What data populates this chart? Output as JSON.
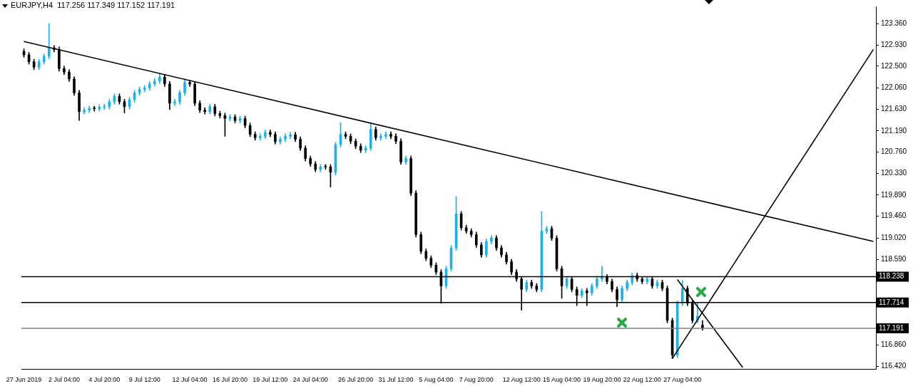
{
  "chart_data": {
    "type": "candlestick",
    "title": "EURJPY,H4  117.256 117.349 117.152 117.191",
    "categories": [
      "27 Jun 2019",
      null,
      null,
      null,
      null,
      null,
      null,
      null,
      "2 Jul 04:00",
      null,
      null,
      null,
      null,
      null,
      null,
      null,
      "4 Jul 20:00",
      null,
      null,
      null,
      null,
      null,
      null,
      null,
      "9 Jul 12:00",
      null,
      null,
      null,
      null,
      null,
      null,
      null,
      null,
      "12 Jul 04:00",
      null,
      null,
      null,
      null,
      null,
      null,
      null,
      "16 Jul 20:00",
      null,
      null,
      null,
      null,
      null,
      null,
      null,
      "19 Jul 12:00",
      null,
      null,
      null,
      null,
      null,
      null,
      null,
      "24 Jul 04:00",
      null,
      null,
      null,
      null,
      null,
      null,
      null,
      null,
      "26 Jul 20:00",
      null,
      null,
      null,
      null,
      null,
      null,
      null,
      "31 Jul 12:00",
      null,
      null,
      null,
      null,
      null,
      null,
      null,
      "5 Aug 04:00",
      null,
      null,
      null,
      null,
      null,
      null,
      null,
      "7 Aug 20:00",
      null,
      null,
      null,
      null,
      null,
      null,
      null,
      null,
      "12 Aug 12:00",
      null,
      null,
      null,
      null,
      null,
      null,
      null,
      "15 Aug 04:00",
      null,
      null,
      null,
      null,
      null,
      null,
      null,
      "19 Aug 20:00",
      null,
      null,
      null,
      null,
      null,
      null,
      null,
      "22 Aug 12:00",
      null,
      null,
      null,
      null,
      null,
      null,
      null,
      "27 Aug 04:00",
      null,
      null,
      null,
      null,
      null,
      null,
      null,
      null,
      null,
      null,
      null,
      null,
      null,
      null,
      null,
      null,
      null,
      null,
      null,
      null,
      null,
      null,
      null,
      null,
      null,
      null,
      null,
      null,
      null,
      null,
      null,
      null,
      null,
      null,
      null,
      null,
      null,
      null
    ],
    "ohlc": [
      [
        122.8,
        122.85,
        122.68,
        122.73
      ],
      [
        122.73,
        122.78,
        122.54,
        122.59
      ],
      [
        122.59,
        122.64,
        122.43,
        122.48
      ],
      [
        122.48,
        122.64,
        122.43,
        122.59
      ],
      [
        122.59,
        122.75,
        122.54,
        122.7
      ],
      [
        122.7,
        123.36,
        122.65,
        122.87
      ],
      [
        122.87,
        122.92,
        122.79,
        122.84
      ],
      [
        122.84,
        122.89,
        122.4,
        122.45
      ],
      [
        122.45,
        122.5,
        122.33,
        122.38
      ],
      [
        122.38,
        122.43,
        122.19,
        122.24
      ],
      [
        122.24,
        122.29,
        121.91,
        121.96
      ],
      [
        121.96,
        122.01,
        121.4,
        121.58
      ],
      [
        121.58,
        121.66,
        121.53,
        121.61
      ],
      [
        121.61,
        121.69,
        121.56,
        121.64
      ],
      [
        121.64,
        121.69,
        121.59,
        121.64
      ],
      [
        121.64,
        121.72,
        121.59,
        121.67
      ],
      [
        121.67,
        121.73,
        121.62,
        121.68
      ],
      [
        121.68,
        121.83,
        121.63,
        121.78
      ],
      [
        121.78,
        121.94,
        121.73,
        121.89
      ],
      [
        121.89,
        121.94,
        121.73,
        121.78
      ],
      [
        121.78,
        121.83,
        121.55,
        121.68
      ],
      [
        121.68,
        121.87,
        121.63,
        121.82
      ],
      [
        121.82,
        122.01,
        121.77,
        121.96
      ],
      [
        121.96,
        122.08,
        121.91,
        122.03
      ],
      [
        122.03,
        122.11,
        121.98,
        122.06
      ],
      [
        122.06,
        122.19,
        122.01,
        122.14
      ],
      [
        122.14,
        122.25,
        122.09,
        122.2
      ],
      [
        122.2,
        122.36,
        122.15,
        122.28
      ],
      [
        122.28,
        122.33,
        122.09,
        122.14
      ],
      [
        122.14,
        122.19,
        121.62,
        121.75
      ],
      [
        121.75,
        121.83,
        121.7,
        121.78
      ],
      [
        121.78,
        122.01,
        121.73,
        121.96
      ],
      [
        121.96,
        122.25,
        121.91,
        122.17
      ],
      [
        122.17,
        122.22,
        122.09,
        122.14
      ],
      [
        122.14,
        122.19,
        121.7,
        121.75
      ],
      [
        121.75,
        121.8,
        121.56,
        121.61
      ],
      [
        121.61,
        121.66,
        121.53,
        121.58
      ],
      [
        121.58,
        121.73,
        121.53,
        121.68
      ],
      [
        121.68,
        121.73,
        121.49,
        121.54
      ],
      [
        121.54,
        121.59,
        121.45,
        121.5
      ],
      [
        121.5,
        121.55,
        121.08,
        121.44
      ],
      [
        121.44,
        121.52,
        121.39,
        121.47
      ],
      [
        121.47,
        121.52,
        121.35,
        121.4
      ],
      [
        121.4,
        121.49,
        121.35,
        121.44
      ],
      [
        121.44,
        121.49,
        121.25,
        121.3
      ],
      [
        121.3,
        121.35,
        121.07,
        121.12
      ],
      [
        121.12,
        121.17,
        121.0,
        121.05
      ],
      [
        121.05,
        121.13,
        121.0,
        121.08
      ],
      [
        121.08,
        121.21,
        121.03,
        121.16
      ],
      [
        121.16,
        121.21,
        121.07,
        121.12
      ],
      [
        121.12,
        121.17,
        120.92,
        120.97
      ],
      [
        120.97,
        121.07,
        120.92,
        121.02
      ],
      [
        121.02,
        121.13,
        120.97,
        121.08
      ],
      [
        121.08,
        121.16,
        121.03,
        121.11
      ],
      [
        121.11,
        121.16,
        120.97,
        121.02
      ],
      [
        121.02,
        121.07,
        120.79,
        120.84
      ],
      [
        120.84,
        120.89,
        120.58,
        120.63
      ],
      [
        120.63,
        120.68,
        120.47,
        120.52
      ],
      [
        120.52,
        120.57,
        120.36,
        120.41
      ],
      [
        120.41,
        120.51,
        120.36,
        120.46
      ],
      [
        120.46,
        120.51,
        120.41,
        120.46
      ],
      [
        120.46,
        120.51,
        120.05,
        120.35
      ],
      [
        120.35,
        120.96,
        120.3,
        120.91
      ],
      [
        120.91,
        121.36,
        120.86,
        121.12
      ],
      [
        121.12,
        121.17,
        121.03,
        121.08
      ],
      [
        121.08,
        121.13,
        120.93,
        120.98
      ],
      [
        120.98,
        121.03,
        120.83,
        120.88
      ],
      [
        120.88,
        120.93,
        120.75,
        120.8
      ],
      [
        120.8,
        120.89,
        120.75,
        120.84
      ],
      [
        120.84,
        121.36,
        120.79,
        121.22
      ],
      [
        121.22,
        121.27,
        121.0,
        121.05
      ],
      [
        121.05,
        121.13,
        121.0,
        121.08
      ],
      [
        121.08,
        121.17,
        121.03,
        121.12
      ],
      [
        121.12,
        121.17,
        121.03,
        121.08
      ],
      [
        121.08,
        121.13,
        120.93,
        120.98
      ],
      [
        120.98,
        121.03,
        120.51,
        120.56
      ],
      [
        120.56,
        120.68,
        120.51,
        120.63
      ],
      [
        120.63,
        120.68,
        119.88,
        119.93
      ],
      [
        119.93,
        119.98,
        119.04,
        119.09
      ],
      [
        119.09,
        119.14,
        118.7,
        118.75
      ],
      [
        118.75,
        118.8,
        118.56,
        118.61
      ],
      [
        118.61,
        118.66,
        118.42,
        118.47
      ],
      [
        118.47,
        118.52,
        118.28,
        118.33
      ],
      [
        118.33,
        118.38,
        117.7,
        118.05
      ],
      [
        118.05,
        118.45,
        118.0,
        118.4
      ],
      [
        118.4,
        118.87,
        118.35,
        118.82
      ],
      [
        118.82,
        119.86,
        118.77,
        119.51
      ],
      [
        119.51,
        119.56,
        119.18,
        119.23
      ],
      [
        119.23,
        119.28,
        119.11,
        119.16
      ],
      [
        119.16,
        119.21,
        119.04,
        119.09
      ],
      [
        119.09,
        119.14,
        118.83,
        118.88
      ],
      [
        118.88,
        118.93,
        118.63,
        118.68
      ],
      [
        118.68,
        119.0,
        118.63,
        118.95
      ],
      [
        118.95,
        119.07,
        118.9,
        119.02
      ],
      [
        119.02,
        119.07,
        118.77,
        118.82
      ],
      [
        118.82,
        118.87,
        118.63,
        118.68
      ],
      [
        118.68,
        118.73,
        118.49,
        118.54
      ],
      [
        118.54,
        118.59,
        118.28,
        118.33
      ],
      [
        118.33,
        118.38,
        118.14,
        118.19
      ],
      [
        118.19,
        118.24,
        117.56,
        117.98
      ],
      [
        117.98,
        118.17,
        117.93,
        118.12
      ],
      [
        118.12,
        118.17,
        118.0,
        118.05
      ],
      [
        118.05,
        118.1,
        117.93,
        117.98
      ],
      [
        117.98,
        119.56,
        117.93,
        119.16
      ],
      [
        119.16,
        119.26,
        119.11,
        119.21
      ],
      [
        119.21,
        119.26,
        118.97,
        119.02
      ],
      [
        119.02,
        119.07,
        118.35,
        118.4
      ],
      [
        118.4,
        118.45,
        117.8,
        118.05
      ],
      [
        118.05,
        118.24,
        118.0,
        118.19
      ],
      [
        118.19,
        118.24,
        117.93,
        117.98
      ],
      [
        117.98,
        118.03,
        117.65,
        117.86
      ],
      [
        117.86,
        118.0,
        117.81,
        117.95
      ],
      [
        117.95,
        118.0,
        117.65,
        117.91
      ],
      [
        117.91,
        118.1,
        117.86,
        118.05
      ],
      [
        118.05,
        118.24,
        118.0,
        118.19
      ],
      [
        118.19,
        118.45,
        118.14,
        118.23
      ],
      [
        118.23,
        118.28,
        118.09,
        118.14
      ],
      [
        118.14,
        118.19,
        117.93,
        117.98
      ],
      [
        117.98,
        118.03,
        117.63,
        117.77
      ],
      [
        117.77,
        118.05,
        117.72,
        118.0
      ],
      [
        118.0,
        118.17,
        117.95,
        118.12
      ],
      [
        118.12,
        118.31,
        118.07,
        118.26
      ],
      [
        118.26,
        118.31,
        118.14,
        118.19
      ],
      [
        118.19,
        118.24,
        118.09,
        118.14
      ],
      [
        118.14,
        118.24,
        118.09,
        118.19
      ],
      [
        118.19,
        118.24,
        118.0,
        118.05
      ],
      [
        118.05,
        118.17,
        118.0,
        118.12
      ],
      [
        118.12,
        118.17,
        117.95,
        118.0
      ],
      [
        118.0,
        118.05,
        117.3,
        117.35
      ],
      [
        117.35,
        117.4,
        116.58,
        116.65
      ],
      [
        116.65,
        117.75,
        116.6,
        117.7
      ],
      [
        117.7,
        118.16,
        117.65,
        118.0
      ],
      [
        118.0,
        118.05,
        117.65,
        117.7
      ],
      [
        117.7,
        117.75,
        117.3,
        117.35
      ],
      [
        117.35,
        117.72,
        117.3,
        117.44
      ],
      [
        117.256,
        117.349,
        117.152,
        117.191
      ],
      null,
      null,
      null,
      null,
      null,
      null,
      null,
      null,
      null,
      null,
      null,
      null,
      null,
      null,
      null,
      null,
      null,
      null,
      null,
      null,
      null,
      null,
      null,
      null,
      null,
      null,
      null,
      null,
      null,
      null,
      null,
      null,
      null,
      null
    ],
    "colors": [
      "#000000",
      "#000000",
      "#000000",
      "#1ab2e8",
      "#1ab2e8",
      "#1ab2e8",
      "#000000",
      "#000000",
      "#000000",
      "#000000",
      "#000000",
      "#000000",
      "#1ab2e8",
      "#1ab2e8",
      "#000000",
      "#1ab2e8",
      "#1ab2e8",
      "#1ab2e8",
      "#1ab2e8",
      "#000000",
      "#000000",
      "#1ab2e8",
      "#1ab2e8",
      "#1ab2e8",
      "#1ab2e8",
      "#1ab2e8",
      "#1ab2e8",
      "#1ab2e8",
      "#000000",
      "#000000",
      "#1ab2e8",
      "#1ab2e8",
      "#1ab2e8",
      "#000000",
      "#000000",
      "#000000",
      "#000000",
      "#1ab2e8",
      "#000000",
      "#000000",
      "#000000",
      "#1ab2e8",
      "#000000",
      "#1ab2e8",
      "#000000",
      "#000000",
      "#000000",
      "#1ab2e8",
      "#1ab2e8",
      "#000000",
      "#000000",
      "#1ab2e8",
      "#1ab2e8",
      "#1ab2e8",
      "#000000",
      "#000000",
      "#000000",
      "#000000",
      "#000000",
      "#1ab2e8",
      "#000000",
      "#000000",
      "#1ab2e8",
      "#1ab2e8",
      "#000000",
      "#000000",
      "#000000",
      "#000000",
      "#1ab2e8",
      "#1ab2e8",
      "#000000",
      "#1ab2e8",
      "#1ab2e8",
      "#000000",
      "#000000",
      "#000000",
      "#1ab2e8",
      "#000000",
      "#000000",
      "#000000",
      "#000000",
      "#000000",
      "#000000",
      "#000000",
      "#1ab2e8",
      "#1ab2e8",
      "#1ab2e8",
      "#000000",
      "#000000",
      "#000000",
      "#000000",
      "#000000",
      "#1ab2e8",
      "#1ab2e8",
      "#000000",
      "#000000",
      "#000000",
      "#000000",
      "#000000",
      "#000000",
      "#1ab2e8",
      "#000000",
      "#000000",
      "#1ab2e8",
      "#1ab2e8",
      "#000000",
      "#000000",
      "#000000",
      "#1ab2e8",
      "#000000",
      "#000000",
      "#1ab2e8",
      "#000000",
      "#1ab2e8",
      "#1ab2e8",
      "#1ab2e8",
      "#000000",
      "#000000",
      "#000000",
      "#1ab2e8",
      "#1ab2e8",
      "#1ab2e8",
      "#000000",
      "#000000",
      "#1ab2e8",
      "#000000",
      "#1ab2e8",
      "#000000",
      "#000000",
      "#000000",
      "#1ab2e8",
      "#1ab2e8",
      "#000000",
      "#000000",
      "#1ab2e8",
      "#000000",
      null,
      null,
      null,
      null,
      null,
      null,
      null,
      null,
      null,
      null,
      null,
      null,
      null,
      null,
      null,
      null,
      null,
      null,
      null,
      null,
      null,
      null,
      null,
      null,
      null,
      null,
      null,
      null,
      null,
      null,
      null,
      null,
      null,
      null
    ],
    "series": [
      {
        "type": "line",
        "color": "#000000",
        "values": [
          123.0,
          null,
          null,
          null,
          null,
          null,
          null,
          null,
          null,
          null,
          null,
          null,
          null,
          null,
          null,
          null,
          null,
          null,
          null,
          null,
          null,
          null,
          null,
          null,
          null,
          null,
          null,
          null,
          null,
          null,
          null,
          null,
          null,
          null,
          null,
          null,
          null,
          null,
          null,
          null,
          null,
          null,
          null,
          null,
          null,
          null,
          null,
          null,
          null,
          null,
          null,
          null,
          null,
          null,
          null,
          null,
          null,
          null,
          null,
          null,
          null,
          null,
          null,
          null,
          null,
          null,
          null,
          null,
          null,
          null,
          null,
          null,
          null,
          null,
          null,
          null,
          null,
          null,
          null,
          null,
          null,
          null,
          null,
          null,
          null,
          null,
          null,
          null,
          null,
          null,
          null,
          null,
          null,
          null,
          null,
          null,
          null,
          null,
          null,
          null,
          null,
          null,
          null,
          null,
          null,
          null,
          null,
          null,
          null,
          null,
          null,
          null,
          null,
          null,
          null,
          null,
          null,
          null,
          null,
          null,
          null,
          null,
          null,
          null,
          null,
          null,
          null,
          null,
          null,
          null,
          null,
          null,
          null,
          null,
          null,
          null,
          null,
          null,
          null,
          null,
          null,
          null,
          null,
          null,
          null,
          null,
          null,
          null,
          null,
          null,
          null,
          null,
          null,
          null,
          null,
          null,
          null,
          null,
          null,
          null,
          null,
          null,
          null,
          null,
          null,
          null,
          null,
          null,
          null,
          118.95
        ]
      },
      {
        "type": "line",
        "color": "#000000",
        "values": [
          null,
          null,
          null,
          null,
          null,
          null,
          null,
          null,
          null,
          null,
          null,
          null,
          null,
          null,
          null,
          null,
          null,
          null,
          null,
          null,
          null,
          null,
          null,
          null,
          null,
          null,
          null,
          null,
          null,
          null,
          null,
          null,
          null,
          null,
          null,
          null,
          null,
          null,
          null,
          null,
          null,
          null,
          null,
          null,
          null,
          null,
          null,
          null,
          null,
          null,
          null,
          null,
          null,
          null,
          null,
          null,
          null,
          null,
          null,
          null,
          null,
          null,
          null,
          null,
          null,
          null,
          null,
          null,
          null,
          null,
          null,
          null,
          null,
          null,
          null,
          null,
          null,
          null,
          null,
          null,
          null,
          null,
          null,
          null,
          null,
          null,
          null,
          null,
          null,
          null,
          null,
          null,
          null,
          null,
          null,
          null,
          null,
          null,
          null,
          null,
          null,
          null,
          null,
          null,
          null,
          null,
          null,
          null,
          null,
          null,
          null,
          null,
          null,
          null,
          null,
          null,
          null,
          null,
          null,
          null,
          null,
          null,
          null,
          null,
          null,
          null,
          null,
          null,
          null,
          116.58,
          null,
          null,
          null,
          null,
          null,
          null,
          null,
          null,
          null,
          null,
          null,
          null,
          null,
          null,
          null,
          null,
          null,
          null,
          null,
          null,
          null,
          null,
          null,
          null,
          null,
          null,
          null,
          null,
          null,
          null,
          null,
          null,
          null,
          null,
          null,
          null,
          null,
          null,
          null,
          122.84
        ]
      },
      {
        "type": "line",
        "color": "#000000",
        "values": [
          null,
          null,
          null,
          null,
          null,
          null,
          null,
          null,
          null,
          null,
          null,
          null,
          null,
          null,
          null,
          null,
          null,
          null,
          null,
          null,
          null,
          null,
          null,
          null,
          null,
          null,
          null,
          null,
          null,
          null,
          null,
          null,
          null,
          null,
          null,
          null,
          null,
          null,
          null,
          null,
          null,
          null,
          null,
          null,
          null,
          null,
          null,
          null,
          null,
          null,
          null,
          null,
          null,
          null,
          null,
          null,
          null,
          null,
          null,
          null,
          null,
          null,
          null,
          null,
          null,
          null,
          null,
          null,
          null,
          null,
          null,
          null,
          null,
          null,
          null,
          null,
          null,
          null,
          null,
          null,
          null,
          null,
          null,
          null,
          null,
          null,
          null,
          null,
          null,
          null,
          null,
          null,
          null,
          null,
          null,
          null,
          null,
          null,
          null,
          null,
          null,
          null,
          null,
          null,
          null,
          null,
          null,
          null,
          null,
          null,
          null,
          null,
          null,
          null,
          null,
          null,
          null,
          null,
          null,
          null,
          null,
          null,
          null,
          null,
          null,
          null,
          null,
          null,
          null,
          null,
          118.18,
          null,
          null,
          null,
          null,
          null,
          null,
          null,
          null,
          null,
          null,
          null,
          null,
          116.4,
          null,
          null,
          null,
          null,
          null,
          null,
          null,
          null,
          null,
          null,
          null,
          null,
          null,
          null,
          null,
          null,
          null,
          null,
          null,
          null,
          null,
          null,
          null,
          null,
          null,
          null
        ]
      }
    ],
    "ylim": [
      116.37,
      123.71
    ],
    "yticks": [
      {
        "value": 123.36,
        "label": "123.360"
      },
      {
        "value": 122.93,
        "label": "122.930"
      },
      {
        "value": 122.5,
        "label": "122.500"
      },
      {
        "value": 122.06,
        "label": "122.060"
      },
      {
        "value": 121.63,
        "label": "121.630"
      },
      {
        "value": 121.19,
        "label": "121.190"
      },
      {
        "value": 120.76,
        "label": "120.760"
      },
      {
        "value": 120.33,
        "label": "120.330"
      },
      {
        "value": 119.89,
        "label": "119.890"
      },
      {
        "value": 119.46,
        "label": "119.460"
      },
      {
        "value": 119.02,
        "label": "119.020"
      },
      {
        "value": 118.59,
        "label": "118.590"
      },
      {
        "value": 118.16,
        "label": null
      },
      {
        "value": 117.29,
        "label": null
      },
      {
        "value": 116.86,
        "label": "116.860"
      },
      {
        "value": 116.42,
        "label": "116.420"
      }
    ],
    "ref_lines": [
      {
        "axis": "y",
        "value": 118.238,
        "label": "118.238",
        "color": "#000000"
      },
      {
        "axis": "y",
        "value": 117.714,
        "label": "117.714",
        "color": "#000000"
      },
      {
        "axis": "y",
        "value": 117.191,
        "label": "117.191",
        "color": "#808080"
      }
    ],
    "grid": false,
    "legend": false
  }
}
